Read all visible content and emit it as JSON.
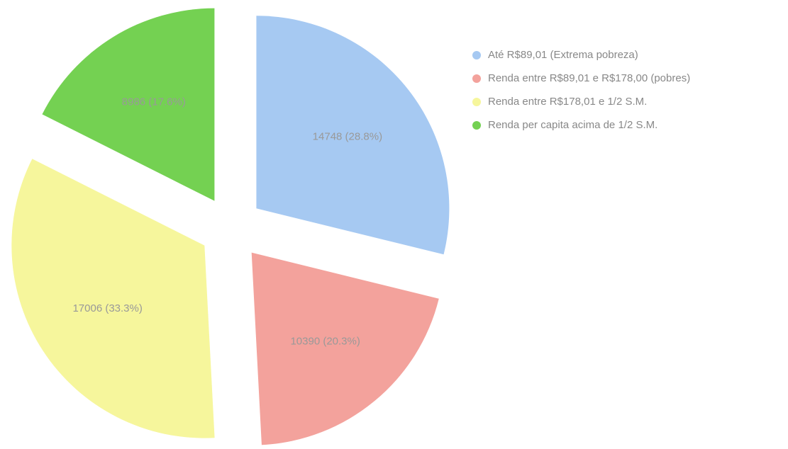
{
  "chart_data": {
    "type": "pie",
    "categories": [
      "Até R$89,01 (Extrema pobreza)",
      "Renda entre R$89,01 e R$178,00 (pobres)",
      "Renda entre R$178,01 e 1/2 S.M.",
      "Renda per capita acima de 1/2 S.M."
    ],
    "values": [
      14748,
      10390,
      17006,
      8986
    ],
    "value_labels": [
      "14748 (28.8%)",
      "10390 (20.3%)",
      "17006 (33.3%)",
      "8986 (17.6%)"
    ],
    "colors": [
      "#a6c9f2",
      "#f3a29c",
      "#f6f69c",
      "#74d152"
    ],
    "legend": "right"
  }
}
